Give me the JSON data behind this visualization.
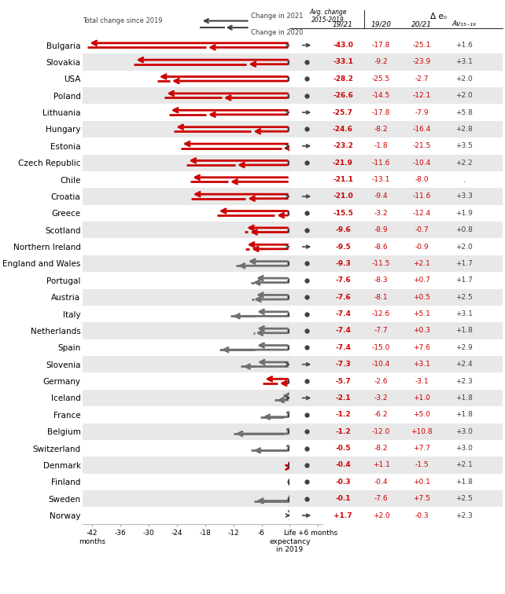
{
  "countries": [
    "Bulgaria",
    "Slovakia",
    "USA",
    "Poland",
    "Lithuania",
    "Hungary",
    "Estonia",
    "Czech Republic",
    "Chile",
    "Croatia",
    "Greece",
    "Scotland",
    "Northern Ireland",
    "England and Wales",
    "Portugal",
    "Austria",
    "Italy",
    "Netherlands",
    "Spain",
    "Slovenia",
    "Germany",
    "Iceland",
    "France",
    "Belgium",
    "Switzerland",
    "Denmark",
    "Finland",
    "Sweden",
    "Norway"
  ],
  "change_2020": [
    -17.8,
    -9.2,
    -25.5,
    -14.5,
    -17.8,
    -8.2,
    -1.8,
    -11.6,
    -13.1,
    -9.4,
    -3.2,
    -8.9,
    -8.6,
    -11.5,
    -8.3,
    -8.1,
    -12.6,
    -7.7,
    -15.0,
    -10.4,
    -2.6,
    -3.2,
    -6.2,
    -12.0,
    -8.2,
    1.1,
    -0.4,
    -7.6,
    2.0
  ],
  "change_2021": [
    -25.1,
    -23.9,
    -2.7,
    -12.1,
    -7.9,
    -16.4,
    -21.5,
    -10.4,
    -8.0,
    -11.6,
    -12.4,
    -0.7,
    -0.9,
    2.1,
    0.7,
    0.5,
    5.1,
    0.3,
    7.6,
    3.1,
    -3.1,
    1.0,
    5.0,
    10.8,
    7.7,
    -1.5,
    0.1,
    7.5,
    -0.3
  ],
  "total_1921": [
    -43.0,
    -33.1,
    -28.2,
    -26.6,
    -25.7,
    -24.6,
    -23.2,
    -21.9,
    -21.1,
    -21.0,
    -15.5,
    -9.6,
    -9.5,
    -9.3,
    -7.6,
    -7.6,
    -7.4,
    -7.4,
    -7.4,
    -7.3,
    -5.7,
    -2.1,
    -1.2,
    -1.2,
    -0.5,
    -0.4,
    -0.3,
    -0.1,
    1.7
  ],
  "avg_1519": [
    1.6,
    3.1,
    2.0,
    2.0,
    5.8,
    2.8,
    3.5,
    2.2,
    null,
    3.3,
    1.9,
    0.8,
    2.0,
    1.7,
    1.7,
    2.5,
    3.1,
    1.8,
    2.9,
    2.4,
    2.3,
    1.8,
    1.8,
    3.0,
    3.0,
    2.1,
    1.8,
    2.5,
    2.3
  ],
  "marker_type": [
    "arrow",
    "dot",
    "dot",
    "dot",
    "arrow",
    "dot",
    "arrow",
    "dot",
    "none",
    "arrow",
    "dot",
    "dot",
    "arrow",
    "dot",
    "dot",
    "dot",
    "dot",
    "dot",
    "dot",
    "arrow",
    "dot",
    "arrow",
    "dot",
    "dot",
    "dot",
    "dot",
    "dot",
    "dot",
    "arrow"
  ],
  "is_red": [
    true,
    true,
    true,
    true,
    true,
    true,
    true,
    true,
    true,
    true,
    true,
    true,
    true,
    false,
    false,
    false,
    false,
    false,
    false,
    false,
    true,
    false,
    false,
    false,
    false,
    true,
    false,
    false,
    false
  ],
  "red_color": "#cc0000",
  "gray_color": "#707070",
  "dark_gray": "#404040",
  "light_gray_bg": "#e8e8e8"
}
